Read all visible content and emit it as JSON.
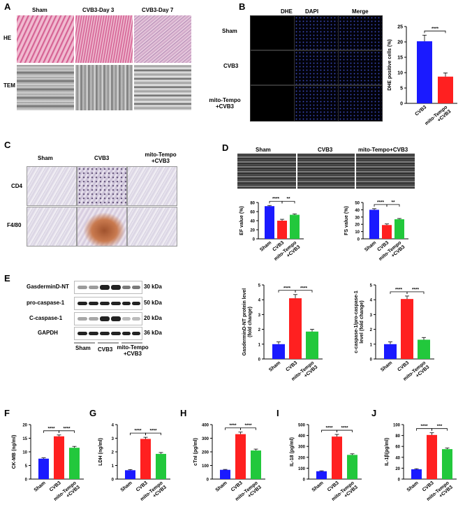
{
  "panels": {
    "A": {
      "letter": "A",
      "cols": [
        "Sham",
        "CVB3-Day 3",
        "CVB3-Day 7"
      ],
      "rows": [
        "HE",
        "TEM"
      ]
    },
    "B": {
      "letter": "B",
      "cols": [
        "DHE",
        "DAPI",
        "Merge"
      ],
      "rows": [
        "Sham",
        "CVB3",
        "mito-Tempo\n+CVB3"
      ]
    },
    "C": {
      "letter": "C",
      "cols": [
        "Sham",
        "CVB3",
        "mito-Tempo\n+CVB3"
      ],
      "rows": [
        "CD4",
        "F4/80"
      ]
    },
    "D": {
      "letter": "D",
      "cols": [
        "Sham",
        "CVB3",
        "mito-Tempo+CVB3"
      ]
    },
    "E": {
      "letter": "E",
      "wb_rows": [
        "GasderminD-NT",
        "pro-caspase-1",
        "C-caspase-1",
        "GAPDH"
      ],
      "wb_sizes": [
        "30 kDa",
        "50 kDa",
        "20 kDa",
        "36 kDa"
      ],
      "wb_groups": [
        "Sham",
        "CVB3",
        "mito-Tempo\n+CVB3"
      ]
    },
    "F": {
      "letter": "F"
    },
    "G": {
      "letter": "G"
    },
    "H": {
      "letter": "H"
    },
    "I": {
      "letter": "I"
    },
    "J": {
      "letter": "J"
    }
  },
  "colors": {
    "sham": "#1a1aff",
    "cvb3": "#ff2020",
    "tempo": "#22c83c"
  },
  "chart_data": [
    {
      "id": "B",
      "type": "bar",
      "categories": [
        "CVB3",
        "mito-Tempo\n+CVB3"
      ],
      "values": [
        20.2,
        8.7
      ],
      "errors": [
        2.0,
        1.2
      ],
      "colors": [
        "#1a1aff",
        "#ff2020"
      ],
      "ylabel": "DHE positive cells (%)",
      "ylim": [
        0,
        25
      ],
      "yticks": [
        0,
        5,
        10,
        15,
        20,
        25
      ],
      "sig": [
        {
          "a": 0,
          "b": 1,
          "text": "****"
        }
      ]
    },
    {
      "id": "D1",
      "type": "bar",
      "categories": [
        "Sham",
        "CVB3",
        "mito-Tempo\n+CVB3"
      ],
      "values": [
        72,
        40,
        53
      ],
      "errors": [
        1.5,
        3,
        2
      ],
      "colors": [
        "#1a1aff",
        "#ff2020",
        "#22c83c"
      ],
      "ylabel": "EF value (%)",
      "ylim": [
        0,
        80
      ],
      "yticks": [
        0,
        20,
        40,
        60,
        80
      ],
      "sig": [
        {
          "a": 0,
          "b": 1,
          "text": "****"
        },
        {
          "a": 1,
          "b": 2,
          "text": "**"
        }
      ]
    },
    {
      "id": "D2",
      "type": "bar",
      "categories": [
        "Sham",
        "CVB3",
        "mito-Tempo\n+CVB3"
      ],
      "values": [
        40,
        19,
        27
      ],
      "errors": [
        1.5,
        1.5,
        1
      ],
      "colors": [
        "#1a1aff",
        "#ff2020",
        "#22c83c"
      ],
      "ylabel": "FS value (%)",
      "ylim": [
        0,
        50
      ],
      "yticks": [
        0,
        10,
        20,
        30,
        40,
        50
      ],
      "sig": [
        {
          "a": 0,
          "b": 1,
          "text": "****"
        },
        {
          "a": 1,
          "b": 2,
          "text": "**"
        }
      ]
    },
    {
      "id": "E1",
      "type": "bar",
      "categories": [
        "Sham",
        "CVB3",
        "mito-Tempo\n+CVB3"
      ],
      "values": [
        1.0,
        4.1,
        1.85
      ],
      "errors": [
        0.15,
        0.25,
        0.15
      ],
      "colors": [
        "#1a1aff",
        "#ff2020",
        "#22c83c"
      ],
      "ylabel": "GasderminD-NT protein level\n(fold change)",
      "ylim": [
        0,
        5
      ],
      "yticks": [
        0,
        1,
        2,
        3,
        4,
        5
      ],
      "sig": [
        {
          "a": 0,
          "b": 1,
          "text": "****"
        },
        {
          "a": 1,
          "b": 2,
          "text": "****"
        }
      ]
    },
    {
      "id": "E2",
      "type": "bar",
      "categories": [
        "Sham",
        "CVB3",
        "mito-Tempo\n+CVB3"
      ],
      "values": [
        1.0,
        4.05,
        1.3
      ],
      "errors": [
        0.15,
        0.2,
        0.15
      ],
      "colors": [
        "#1a1aff",
        "#ff2020",
        "#22c83c"
      ],
      "ylabel": "c-caspase-1/pro-caspase-1\nlevel (fold change)",
      "ylim": [
        0,
        5
      ],
      "yticks": [
        0,
        1,
        2,
        3,
        4,
        5
      ],
      "sig": [
        {
          "a": 0,
          "b": 1,
          "text": "****"
        },
        {
          "a": 1,
          "b": 2,
          "text": "****"
        }
      ]
    },
    {
      "id": "F",
      "type": "bar",
      "categories": [
        "Sham",
        "CVB3",
        "mito-Tempo\n+CVB3"
      ],
      "values": [
        7.5,
        15.7,
        11.5
      ],
      "errors": [
        0.3,
        0.5,
        0.5
      ],
      "colors": [
        "#1a1aff",
        "#ff2020",
        "#22c83c"
      ],
      "ylabel": "CK-MB (ng/ml)",
      "ylim": [
        0,
        20
      ],
      "yticks": [
        0,
        5,
        10,
        15,
        20
      ],
      "sig": [
        {
          "a": 0,
          "b": 1,
          "text": "****"
        },
        {
          "a": 1,
          "b": 2,
          "text": "****"
        }
      ]
    },
    {
      "id": "G",
      "type": "bar",
      "categories": [
        "Sham",
        "CVB3",
        "mito-Tempo\n+CVB3"
      ],
      "values": [
        0.65,
        2.95,
        1.85
      ],
      "errors": [
        0.05,
        0.12,
        0.1
      ],
      "colors": [
        "#1a1aff",
        "#ff2020",
        "#22c83c"
      ],
      "ylabel": "LDH (ng/ml)",
      "ylim": [
        0,
        4
      ],
      "yticks": [
        0,
        1,
        2,
        3,
        4
      ],
      "sig": [
        {
          "a": 0,
          "b": 1,
          "text": "****"
        },
        {
          "a": 1,
          "b": 2,
          "text": "****"
        }
      ]
    },
    {
      "id": "H",
      "type": "bar",
      "categories": [
        "Sham",
        "CVB3",
        "mito-Tempo\n+CVB3"
      ],
      "values": [
        68,
        330,
        210
      ],
      "errors": [
        3,
        15,
        10
      ],
      "colors": [
        "#1a1aff",
        "#ff2020",
        "#22c83c"
      ],
      "ylabel": "cTnI (pg/ml)",
      "ylim": [
        0,
        400
      ],
      "yticks": [
        0,
        100,
        200,
        300,
        400
      ],
      "sig": [
        {
          "a": 0,
          "b": 1,
          "text": "****"
        },
        {
          "a": 1,
          "b": 2,
          "text": "****"
        }
      ]
    },
    {
      "id": "I",
      "type": "bar",
      "categories": [
        "Sham",
        "CVB3",
        "mito-Tempo\n+CVB3"
      ],
      "values": [
        72,
        390,
        222
      ],
      "errors": [
        4,
        20,
        10
      ],
      "colors": [
        "#1a1aff",
        "#ff2020",
        "#22c83c"
      ],
      "ylabel": "IL-18 (pg/ml)",
      "ylim": [
        0,
        500
      ],
      "yticks": [
        0,
        100,
        200,
        300,
        400,
        500
      ],
      "sig": [
        {
          "a": 0,
          "b": 1,
          "text": "****"
        },
        {
          "a": 1,
          "b": 2,
          "text": "****"
        }
      ]
    },
    {
      "id": "J",
      "type": "bar",
      "categories": [
        "Sham",
        "CVB3",
        "mito-Tempo\n+CVB3"
      ],
      "values": [
        18,
        81,
        55
      ],
      "errors": [
        1,
        4,
        2
      ],
      "colors": [
        "#1a1aff",
        "#ff2020",
        "#22c83c"
      ],
      "ylabel": "IL-1β(pg/ml)",
      "ylim": [
        0,
        100
      ],
      "yticks": [
        0,
        20,
        40,
        60,
        80,
        100
      ],
      "sig": [
        {
          "a": 0,
          "b": 1,
          "text": "****"
        },
        {
          "a": 1,
          "b": 2,
          "text": "***"
        }
      ]
    }
  ]
}
